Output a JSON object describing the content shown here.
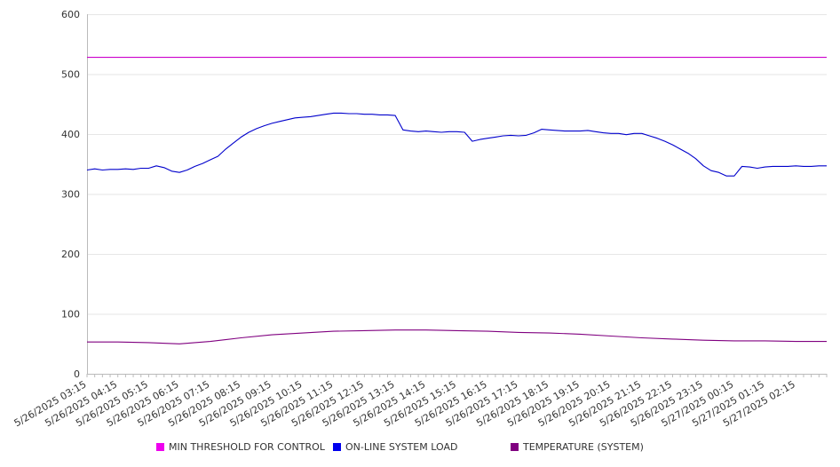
{
  "chart_data": {
    "type": "line",
    "title": "",
    "xlabel": "",
    "ylabel": "",
    "ylim": [
      0,
      600
    ],
    "yticks": [
      0,
      100,
      200,
      300,
      400,
      500,
      600
    ],
    "grid": "horizontal",
    "legend_position": "bottom",
    "x_tick_labels": [
      "5/26/2025 03:15",
      "5/26/2025 04:15",
      "5/26/2025 05:15",
      "5/26/2025 06:15",
      "5/26/2025 07:15",
      "5/26/2025 08:15",
      "5/26/2025 09:15",
      "5/26/2025 10:15",
      "5/26/2025 11:15",
      "5/26/2025 12:15",
      "5/26/2025 13:15",
      "5/26/2025 14:15",
      "5/26/2025 15:15",
      "5/26/2025 16:15",
      "5/26/2025 17:15",
      "5/26/2025 18:15",
      "5/26/2025 19:15",
      "5/26/2025 20:15",
      "5/26/2025 21:15",
      "5/26/2025 22:15",
      "5/26/2025 23:15",
      "5/27/2025 00:15",
      "5/27/2025 01:15",
      "5/27/2025 02:15"
    ],
    "x_range": [
      "5/26/2025 03:15",
      "5/27/2025 03:15"
    ],
    "series": [
      {
        "name": "MIN THRESHOLD FOR CONTROL",
        "color": "#cc00cc",
        "points": [
          [
            "5/26/2025 03:15",
            528
          ],
          [
            "5/27/2025 03:15",
            528
          ]
        ]
      },
      {
        "name": "ON-LINE SYSTEM LOAD",
        "color": "#0000cc",
        "points": [
          [
            "5/26/2025 03:15",
            340
          ],
          [
            "5/26/2025 03:30",
            342
          ],
          [
            "5/26/2025 03:45",
            340
          ],
          [
            "5/26/2025 04:00",
            341
          ],
          [
            "5/26/2025 04:15",
            341
          ],
          [
            "5/26/2025 04:30",
            342
          ],
          [
            "5/26/2025 04:45",
            341
          ],
          [
            "5/26/2025 05:00",
            343
          ],
          [
            "5/26/2025 05:15",
            343
          ],
          [
            "5/26/2025 05:30",
            347
          ],
          [
            "5/26/2025 05:45",
            344
          ],
          [
            "5/26/2025 06:00",
            338
          ],
          [
            "5/26/2025 06:15",
            336
          ],
          [
            "5/26/2025 06:30",
            340
          ],
          [
            "5/26/2025 06:45",
            346
          ],
          [
            "5/26/2025 07:00",
            351
          ],
          [
            "5/26/2025 07:15",
            357
          ],
          [
            "5/26/2025 07:30",
            363
          ],
          [
            "5/26/2025 07:45",
            375
          ],
          [
            "5/26/2025 08:00",
            385
          ],
          [
            "5/26/2025 08:15",
            395
          ],
          [
            "5/26/2025 08:30",
            403
          ],
          [
            "5/26/2025 08:45",
            409
          ],
          [
            "5/26/2025 09:00",
            414
          ],
          [
            "5/26/2025 09:15",
            418
          ],
          [
            "5/26/2025 09:30",
            421
          ],
          [
            "5/26/2025 09:45",
            424
          ],
          [
            "5/26/2025 10:00",
            427
          ],
          [
            "5/26/2025 10:15",
            428
          ],
          [
            "5/26/2025 10:30",
            429
          ],
          [
            "5/26/2025 10:45",
            431
          ],
          [
            "5/26/2025 11:00",
            433
          ],
          [
            "5/26/2025 11:15",
            435
          ],
          [
            "5/26/2025 11:30",
            435
          ],
          [
            "5/26/2025 11:45",
            434
          ],
          [
            "5/26/2025 12:00",
            434
          ],
          [
            "5/26/2025 12:15",
            433
          ],
          [
            "5/26/2025 12:30",
            433
          ],
          [
            "5/26/2025 12:45",
            432
          ],
          [
            "5/26/2025 13:00",
            432
          ],
          [
            "5/26/2025 13:15",
            431
          ],
          [
            "5/26/2025 13:30",
            407
          ],
          [
            "5/26/2025 13:45",
            405
          ],
          [
            "5/26/2025 14:00",
            404
          ],
          [
            "5/26/2025 14:15",
            405
          ],
          [
            "5/26/2025 14:30",
            404
          ],
          [
            "5/26/2025 14:45",
            403
          ],
          [
            "5/26/2025 15:00",
            404
          ],
          [
            "5/26/2025 15:15",
            404
          ],
          [
            "5/26/2025 15:30",
            403
          ],
          [
            "5/26/2025 15:45",
            388
          ],
          [
            "5/26/2025 16:00",
            391
          ],
          [
            "5/26/2025 16:15",
            393
          ],
          [
            "5/26/2025 16:30",
            395
          ],
          [
            "5/26/2025 16:45",
            397
          ],
          [
            "5/26/2025 17:00",
            398
          ],
          [
            "5/26/2025 17:15",
            397
          ],
          [
            "5/26/2025 17:30",
            398
          ],
          [
            "5/26/2025 17:45",
            402
          ],
          [
            "5/26/2025 18:00",
            408
          ],
          [
            "5/26/2025 18:15",
            407
          ],
          [
            "5/26/2025 18:30",
            406
          ],
          [
            "5/26/2025 18:45",
            405
          ],
          [
            "5/26/2025 19:00",
            405
          ],
          [
            "5/26/2025 19:15",
            405
          ],
          [
            "5/26/2025 19:30",
            406
          ],
          [
            "5/26/2025 19:45",
            404
          ],
          [
            "5/26/2025 20:00",
            402
          ],
          [
            "5/26/2025 20:15",
            401
          ],
          [
            "5/26/2025 20:30",
            401
          ],
          [
            "5/26/2025 20:45",
            399
          ],
          [
            "5/26/2025 21:00",
            401
          ],
          [
            "5/26/2025 21:15",
            401
          ],
          [
            "5/26/2025 21:30",
            397
          ],
          [
            "5/26/2025 21:45",
            393
          ],
          [
            "5/26/2025 22:00",
            388
          ],
          [
            "5/26/2025 22:15",
            382
          ],
          [
            "5/26/2025 22:30",
            375
          ],
          [
            "5/26/2025 22:45",
            368
          ],
          [
            "5/26/2025 23:00",
            359
          ],
          [
            "5/26/2025 23:15",
            347
          ],
          [
            "5/26/2025 23:30",
            339
          ],
          [
            "5/26/2025 23:45",
            336
          ],
          [
            "5/27/2025 00:00",
            330
          ],
          [
            "5/27/2025 00:15",
            330
          ],
          [
            "5/27/2025 00:30",
            346
          ],
          [
            "5/27/2025 00:45",
            345
          ],
          [
            "5/27/2025 01:00",
            343
          ],
          [
            "5/27/2025 01:15",
            345
          ],
          [
            "5/27/2025 01:30",
            346
          ],
          [
            "5/27/2025 01:45",
            346
          ],
          [
            "5/27/2025 02:00",
            346
          ],
          [
            "5/27/2025 02:15",
            347
          ],
          [
            "5/27/2025 02:30",
            346
          ],
          [
            "5/27/2025 02:45",
            346
          ],
          [
            "5/27/2025 03:00",
            347
          ],
          [
            "5/27/2025 03:15",
            347
          ]
        ]
      },
      {
        "name": "TEMPERATURE (SYSTEM)",
        "color": "#800080",
        "points": [
          [
            "5/26/2025 03:15",
            53
          ],
          [
            "5/26/2025 04:15",
            53
          ],
          [
            "5/26/2025 05:15",
            52
          ],
          [
            "5/26/2025 06:15",
            50
          ],
          [
            "5/26/2025 07:15",
            54
          ],
          [
            "5/26/2025 08:15",
            60
          ],
          [
            "5/26/2025 09:15",
            65
          ],
          [
            "5/26/2025 10:15",
            68
          ],
          [
            "5/26/2025 11:15",
            71
          ],
          [
            "5/26/2025 12:15",
            72
          ],
          [
            "5/26/2025 13:15",
            73
          ],
          [
            "5/26/2025 14:15",
            73
          ],
          [
            "5/26/2025 15:15",
            72
          ],
          [
            "5/26/2025 16:15",
            71
          ],
          [
            "5/26/2025 17:15",
            69
          ],
          [
            "5/26/2025 18:15",
            68
          ],
          [
            "5/26/2025 19:15",
            66
          ],
          [
            "5/26/2025 20:15",
            63
          ],
          [
            "5/26/2025 21:15",
            60
          ],
          [
            "5/26/2025 22:15",
            58
          ],
          [
            "5/26/2025 23:15",
            56
          ],
          [
            "5/27/2025 00:15",
            55
          ],
          [
            "5/27/2025 01:15",
            55
          ],
          [
            "5/27/2025 02:15",
            54
          ],
          [
            "5/27/2025 03:15",
            54
          ]
        ]
      }
    ]
  }
}
